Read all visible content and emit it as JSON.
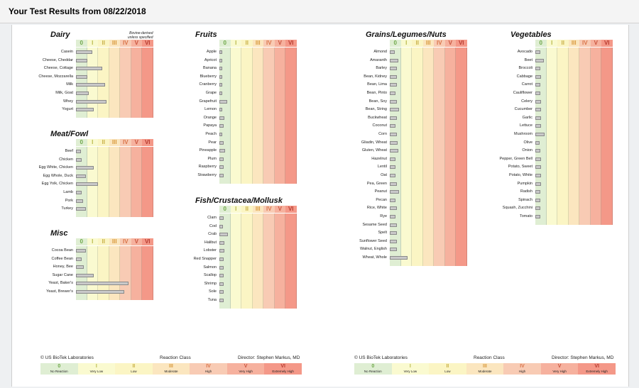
{
  "page_title": "Your Test Results from 08/22/2018",
  "reaction_classes": [
    {
      "numeral": "0",
      "name": "No Reaction",
      "color": "#dfeed3",
      "text_color": "#6ea84a"
    },
    {
      "numeral": "I",
      "name": "Very Low",
      "color": "#fafad0",
      "text_color": "#b8b84a"
    },
    {
      "numeral": "II",
      "name": "Low",
      "color": "#fbf5c4",
      "text_color": "#c9b14a"
    },
    {
      "numeral": "III",
      "name": "Moderate",
      "color": "#fbe6bf",
      "text_color": "#d99a3f"
    },
    {
      "numeral": "IV",
      "name": "High",
      "color": "#f8cbb4",
      "text_color": "#d9744a"
    },
    {
      "numeral": "V",
      "name": "Very High",
      "color": "#f6b19e",
      "text_color": "#c9533d"
    },
    {
      "numeral": "VI",
      "name": "Extremely High",
      "color": "#f49888",
      "text_color": "#b83a2f"
    }
  ],
  "panels": [
    {
      "title": "Dairy",
      "note_line1": "Bovine-derived",
      "note_line2": "unless specified",
      "items": [
        {
          "name": "Casein",
          "score": 0.55
        },
        {
          "name": "Cheese, Cheddar",
          "score": 0.35
        },
        {
          "name": "Cheese, Cottage",
          "score": 0.9
        },
        {
          "name": "Cheese, Mozzarella",
          "score": 0.35
        },
        {
          "name": "Milk",
          "score": 1.0
        },
        {
          "name": "Milk, Goat",
          "score": 0.4
        },
        {
          "name": "Whey",
          "score": 1.05
        },
        {
          "name": "Yogurt",
          "score": 0.6
        }
      ]
    },
    {
      "title": "Meat/Fowl",
      "items": [
        {
          "name": "Beef",
          "score": 0.12
        },
        {
          "name": "Chicken",
          "score": 0.15
        },
        {
          "name": "Egg White, Chicken",
          "score": 0.6
        },
        {
          "name": "Egg Whole, Duck",
          "score": 0.3
        },
        {
          "name": "Egg Yolk, Chicken",
          "score": 0.75
        },
        {
          "name": "Lamb",
          "score": 0.15
        },
        {
          "name": "Pork",
          "score": 0.2
        },
        {
          "name": "Turkey",
          "score": 0.3
        }
      ]
    },
    {
      "title": "Misc",
      "items": [
        {
          "name": "Cocoa Bean",
          "score": 0.3
        },
        {
          "name": "Coffee Bean",
          "score": 0.15
        },
        {
          "name": "Honey, Bee",
          "score": 0.22
        },
        {
          "name": "Sugar Cane",
          "score": 0.6
        },
        {
          "name": "Yeast, Baker's",
          "score": 1.85
        },
        {
          "name": "Yeast, Brewer's",
          "score": 1.7
        }
      ]
    },
    {
      "title": "Fruits",
      "items": [
        {
          "name": "Apple",
          "score": 0.04
        },
        {
          "name": "Apricot",
          "score": 0.04
        },
        {
          "name": "Banana",
          "score": 0.04
        },
        {
          "name": "Blueberry",
          "score": 0.06
        },
        {
          "name": "Cranberry",
          "score": 0.06
        },
        {
          "name": "Grape",
          "score": 0.06
        },
        {
          "name": "Grapefruit",
          "score": 0.22
        },
        {
          "name": "Lemon",
          "score": 0.06
        },
        {
          "name": "Orange",
          "score": 0.12
        },
        {
          "name": "Papaya",
          "score": 0.1
        },
        {
          "name": "Peach",
          "score": 0.06
        },
        {
          "name": "Pear",
          "score": 0.1
        },
        {
          "name": "Pineapple",
          "score": 0.15
        },
        {
          "name": "Plum",
          "score": 0.1
        },
        {
          "name": "Raspberry",
          "score": 0.1
        },
        {
          "name": "Strawberry",
          "score": 0.1
        }
      ]
    },
    {
      "title": "Fish/Crustacea/Mollusk",
      "items": [
        {
          "name": "Clam",
          "score": 0.1
        },
        {
          "name": "Cod",
          "score": 0.08
        },
        {
          "name": "Crab",
          "score": 0.25
        },
        {
          "name": "Halibut",
          "score": 0.12
        },
        {
          "name": "Lobster",
          "score": 0.12
        },
        {
          "name": "Red Snapper",
          "score": 0.1
        },
        {
          "name": "Salmon",
          "score": 0.1
        },
        {
          "name": "Scallop",
          "score": 0.1
        },
        {
          "name": "Shrimp",
          "score": 0.1
        },
        {
          "name": "Sole",
          "score": 0.1
        },
        {
          "name": "Tuna",
          "score": 0.1
        }
      ]
    },
    {
      "title": "Grains/Legumes/Nuts",
      "items": [
        {
          "name": "Almond",
          "score": 0.12
        },
        {
          "name": "Amaranth",
          "score": 0.25
        },
        {
          "name": "Barley",
          "score": 0.2
        },
        {
          "name": "Bean, Kidney",
          "score": 0.2
        },
        {
          "name": "Bean, Lima",
          "score": 0.2
        },
        {
          "name": "Bean, Pinto",
          "score": 0.15
        },
        {
          "name": "Bean, Soy",
          "score": 0.2
        },
        {
          "name": "Bean, String",
          "score": 0.28
        },
        {
          "name": "Buckwheat",
          "score": 0.2
        },
        {
          "name": "Coconut",
          "score": 0.15
        },
        {
          "name": "Corn",
          "score": 0.2
        },
        {
          "name": "Gliadin, Wheat",
          "score": 0.22
        },
        {
          "name": "Gluten, Wheat",
          "score": 0.25
        },
        {
          "name": "Hazelnut",
          "score": 0.15
        },
        {
          "name": "Lentil",
          "score": 0.15
        },
        {
          "name": "Oat",
          "score": 0.15
        },
        {
          "name": "Pea, Green",
          "score": 0.2
        },
        {
          "name": "Peanut",
          "score": 0.28
        },
        {
          "name": "Pecan",
          "score": 0.15
        },
        {
          "name": "Rice, White",
          "score": 0.2
        },
        {
          "name": "Rye",
          "score": 0.15
        },
        {
          "name": "Sesame Seed",
          "score": 0.2
        },
        {
          "name": "Spelt",
          "score": 0.2
        },
        {
          "name": "Sunflower Seed",
          "score": 0.2
        },
        {
          "name": "Walnut, English",
          "score": 0.2
        },
        {
          "name": "Wheat, Whole",
          "score": 0.6
        }
      ]
    },
    {
      "title": "Vegetables",
      "items": [
        {
          "name": "Avocado",
          "score": 0.12
        },
        {
          "name": "Beet",
          "score": 0.25
        },
        {
          "name": "Broccoli",
          "score": 0.12
        },
        {
          "name": "Cabbage",
          "score": 0.15
        },
        {
          "name": "Carrot",
          "score": 0.12
        },
        {
          "name": "Cauliflower",
          "score": 0.12
        },
        {
          "name": "Celery",
          "score": 0.15
        },
        {
          "name": "Cucumber",
          "score": 0.15
        },
        {
          "name": "Garlic",
          "score": 0.15
        },
        {
          "name": "Lettuce",
          "score": 0.15
        },
        {
          "name": "Mushroom",
          "score": 0.28
        },
        {
          "name": "Olive",
          "score": 0.1
        },
        {
          "name": "Onion",
          "score": 0.12
        },
        {
          "name": "Pepper, Green Bell",
          "score": 0.15
        },
        {
          "name": "Potato, Sweet",
          "score": 0.15
        },
        {
          "name": "Potato, White",
          "score": 0.15
        },
        {
          "name": "Pumpkin",
          "score": 0.15
        },
        {
          "name": "Radish",
          "score": 0.12
        },
        {
          "name": "Spinach",
          "score": 0.12
        },
        {
          "name": "Squash, Zucchini",
          "score": 0.12
        },
        {
          "name": "Tomato",
          "score": 0.12
        }
      ]
    }
  ],
  "footers": [
    {
      "lab": "© US BioTek Laboratories",
      "legend_title": "Reaction Class",
      "director": "Director: Stephen Markus, MD"
    },
    {
      "lab": "© US BioTek Laboratories",
      "legend_title": "Reaction Class",
      "director": "Director: Stephen Markus, MD"
    }
  ]
}
